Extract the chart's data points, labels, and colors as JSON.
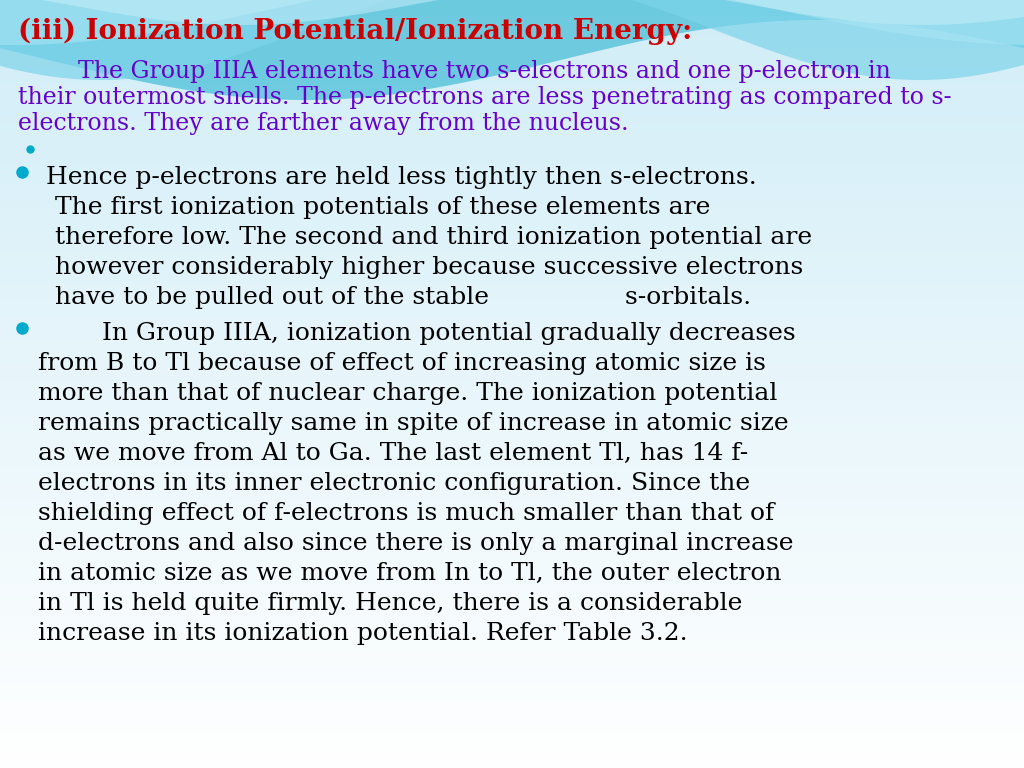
{
  "title": "(iii) Ionization Potential/Ionization Energy:",
  "title_color": "#cc0000",
  "intro_color": "#6600cc",
  "bullet_color": "#00aacc",
  "text_color": "#000000",
  "font_size_title": 20,
  "font_size_intro": 17,
  "font_size_bullet": 18,
  "bg_color": "#dff0f7",
  "wave_colors": [
    "#5bc8e0",
    "#8dd8ed",
    "#b0e4f5",
    "#cceefa"
  ],
  "intro_lines": [
    "        The Group IIIA elements have two s-electrons and one p-electron in",
    "their outermost shells. The p-electrons are less penetrating as compared to s-",
    "electrons. They are farther away from the nucleus."
  ],
  "bullet1_lines": [
    " Hence p-electrons are held less tightly then s-electrons.",
    "The first ionization potentials of these elements are",
    "therefore low. The second and third ionization potential are",
    "however considerably higher because successive electrons",
    "have to be pulled out of the stable                 s-orbitals."
  ],
  "bullet2_lines": [
    "        In Group IIIA, ionization potential gradually decreases",
    "from B to Tl because of effect of increasing atomic size is",
    "more than that of nuclear charge. The ionization potential",
    "remains practically same in spite of increase in atomic size",
    "as we move from Al to Ga. The last element Tl, has 14 f-",
    "electrons in its inner electronic configuration. Since the",
    "shielding effect of f-electrons is much smaller than that of",
    "d-electrons and also since there is only a marginal increase",
    "in atomic size as we move from In to Tl, the outer electron",
    "in Tl is held quite firmly. Hence, there is a considerable",
    "increase in its ionization potential. Refer Table 3.2."
  ]
}
